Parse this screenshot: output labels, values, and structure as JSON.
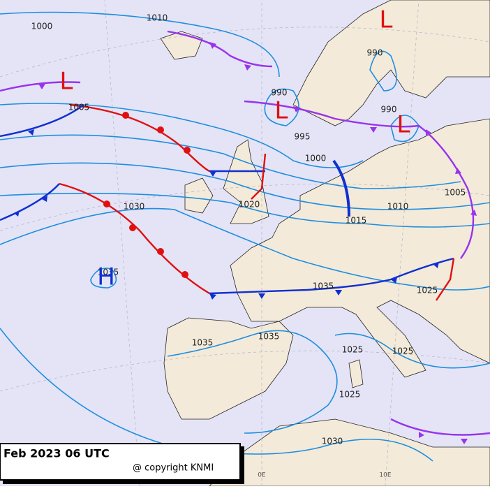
{
  "caption": {
    "date": "Feb 2023 06 UTC",
    "copyright": "@ copyright KNMI"
  },
  "longitude_labels": [
    "0E",
    "10E"
  ],
  "pressure_centers": [
    "L",
    "L",
    "L",
    "L",
    "H"
  ],
  "isobar_labels": [
    "1010",
    "1000",
    "990",
    "990",
    "1005",
    "990",
    "995",
    "1000",
    "1005",
    "1010",
    "1015",
    "1020",
    "1030",
    "1035",
    "1035",
    "1025",
    "1035",
    "1035",
    "1025",
    "1025",
    "1025",
    "1030"
  ]
}
